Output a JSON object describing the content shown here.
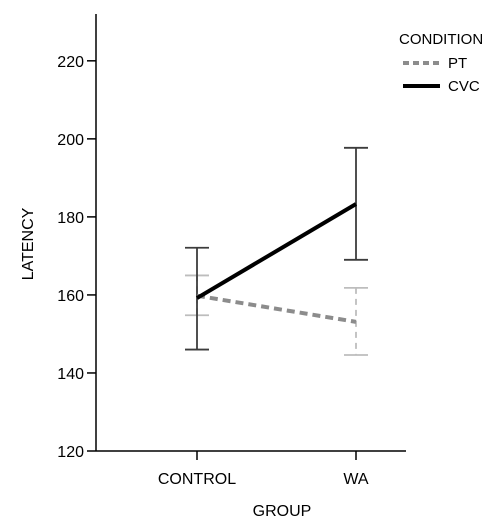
{
  "chart_data": {
    "type": "line",
    "title": "",
    "xlabel": "GROUP",
    "ylabel": "LATENCY",
    "categories": [
      "CONTROL",
      "WA"
    ],
    "ylim": [
      120,
      232
    ],
    "yticks": [
      120,
      140,
      160,
      180,
      200,
      220
    ],
    "grid": false,
    "legend": {
      "title": "CONDITION",
      "placement": "top-right"
    },
    "series": [
      {
        "name": "PT",
        "values": [
          159.8,
          153.1
        ],
        "error_upper": [
          165.0,
          161.8
        ],
        "error_lower": [
          154.8,
          144.6
        ],
        "style": "dashed",
        "color": "#8c8c8c"
      },
      {
        "name": "CVC",
        "values": [
          159.2,
          183.3
        ],
        "error_upper": [
          172.1,
          197.7
        ],
        "error_lower": [
          146.0,
          169.0
        ],
        "style": "solid",
        "color": "#000000"
      }
    ]
  }
}
